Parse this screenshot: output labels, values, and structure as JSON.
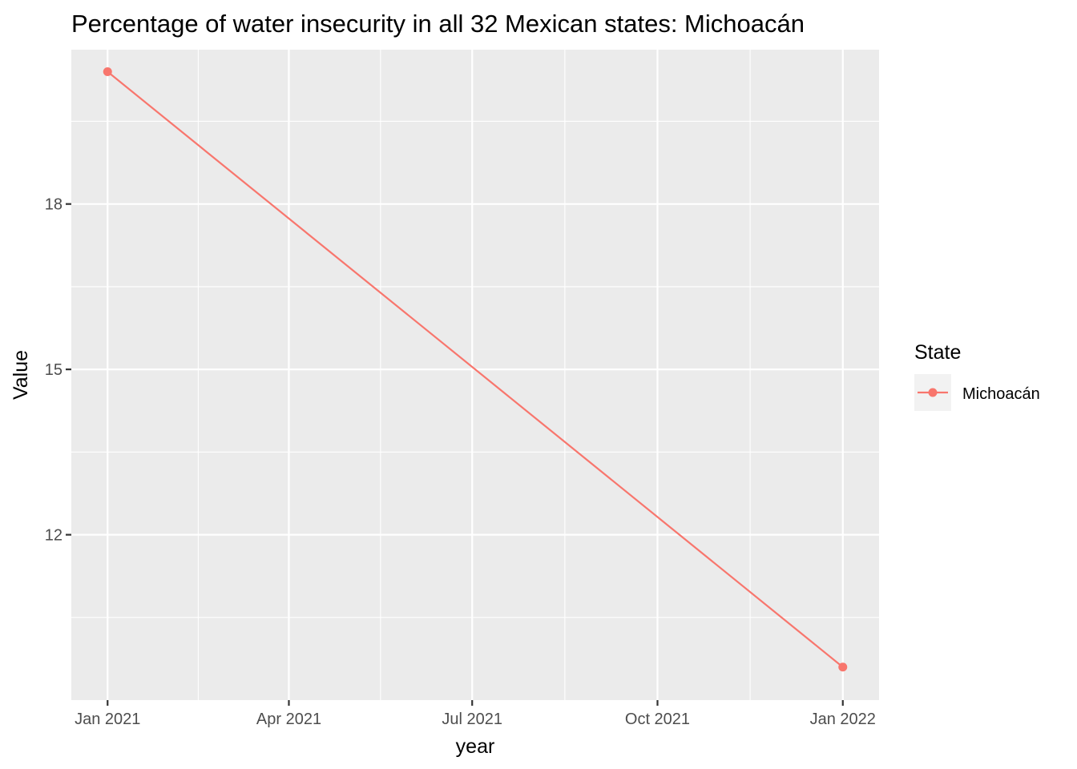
{
  "chart_data": {
    "type": "line",
    "title": "Percentage of water insecurity in all 32 Mexican states: Michoacán",
    "xlabel": "year",
    "ylabel": "Value",
    "x_ticks": [
      "Jan 2021",
      "Apr 2021",
      "Jul 2021",
      "Oct 2021",
      "Jan 2022"
    ],
    "y_ticks": [
      12,
      15,
      18
    ],
    "ylim": [
      9.0,
      20.8
    ],
    "series": [
      {
        "name": "Michoacán",
        "color": "#F8766D",
        "x": [
          "2021-01-01",
          "2022-01-01"
        ],
        "values": [
          20.4,
          9.6
        ]
      }
    ],
    "legend": {
      "title": "State",
      "position": "right"
    },
    "grid": true
  }
}
